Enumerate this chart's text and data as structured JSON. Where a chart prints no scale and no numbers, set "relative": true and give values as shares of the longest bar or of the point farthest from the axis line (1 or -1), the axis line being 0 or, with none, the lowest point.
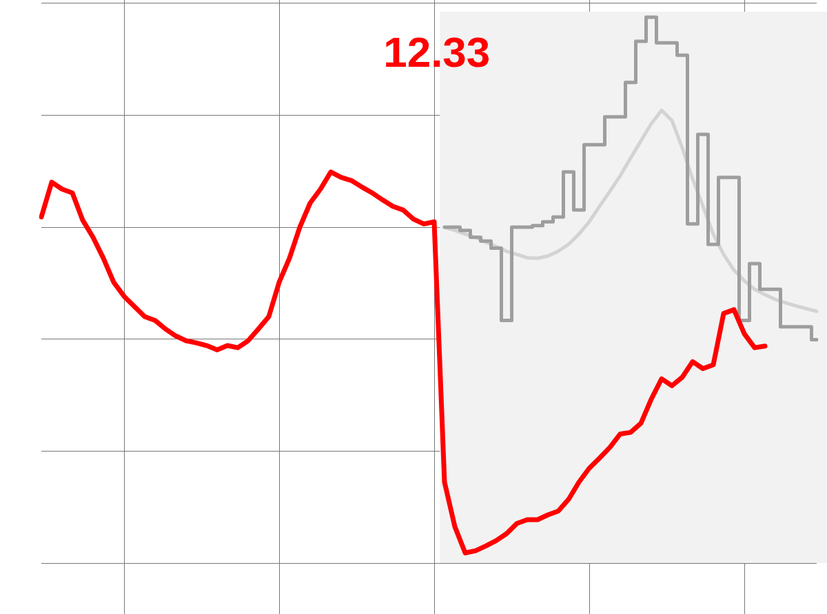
{
  "chart_data": {
    "type": "line",
    "relative": true,
    "grid": true,
    "legend": false,
    "marker": "none",
    "line_style": "solid",
    "annotations": [
      "12.33"
    ],
    "categories": [
      null,
      null,
      null,
      null,
      null,
      null,
      null,
      null,
      null,
      null,
      null,
      null,
      null,
      null,
      null,
      null,
      null,
      null,
      null,
      null,
      null,
      null,
      null,
      null,
      null,
      null,
      null,
      null,
      null,
      null,
      null,
      null,
      null,
      null,
      null,
      null,
      null,
      null,
      null,
      null,
      null,
      null,
      null,
      null,
      null,
      null,
      null,
      null,
      null,
      null,
      null,
      null,
      null,
      null,
      null,
      null,
      null,
      null,
      null,
      null,
      null,
      null,
      null,
      null,
      null,
      null,
      null,
      null,
      null,
      null,
      null,
      null,
      null,
      null,
      null,
      null
    ],
    "series": [
      {
        "color": "#d3d3d3",
        "values": [
          null,
          null,
          null,
          null,
          null,
          null,
          null,
          null,
          null,
          null,
          null,
          null,
          null,
          null,
          null,
          null,
          null,
          null,
          null,
          null,
          null,
          null,
          null,
          null,
          null,
          null,
          null,
          null,
          null,
          null,
          null,
          null,
          null,
          null,
          null,
          null,
          null,
          null,
          null,
          0.608,
          0.602,
          0.595,
          0.589,
          0.58,
          0.572,
          0.563,
          0.557,
          0.551,
          0.55,
          0.554,
          0.563,
          0.576,
          0.595,
          0.618,
          0.647,
          0.675,
          0.704,
          0.737,
          0.769,
          0.801,
          0.826,
          0.807,
          0.756,
          0.698,
          0.647,
          0.595,
          0.557,
          0.528,
          0.508,
          0.492,
          0.482,
          0.473,
          0.467,
          0.461,
          0.456,
          0.451
        ]
      },
      {
        "type": "step",
        "color": "#9e9e9e",
        "values": [
          null,
          null,
          null,
          null,
          null,
          null,
          null,
          null,
          null,
          null,
          null,
          null,
          null,
          null,
          null,
          null,
          null,
          null,
          null,
          null,
          null,
          null,
          null,
          null,
          null,
          null,
          null,
          null,
          null,
          null,
          null,
          null,
          null,
          null,
          null,
          null,
          null,
          null,
          null,
          0.608,
          0.608,
          0.602,
          0.589,
          0.582,
          0.569,
          0.434,
          0.608,
          0.608,
          0.611,
          0.618,
          0.627,
          0.711,
          0.64,
          0.762,
          0.762,
          0.814,
          0.814,
          0.878,
          0.955,
          1,
          0.952,
          0.952,
          0.929,
          0.614,
          0.781,
          0.576,
          0.701,
          0.701,
          0.434,
          0.54,
          0.492,
          0.492,
          0.422,
          0.422,
          0.422,
          0.398
        ]
      },
      {
        "color": "#ff0000",
        "values": [
          0.627,
          0.692,
          0.679,
          0.672,
          0.621,
          0.589,
          0.55,
          0.505,
          0.479,
          0.46,
          0.441,
          0.434,
          0.418,
          0.405,
          0.396,
          0.392,
          0.387,
          0.379,
          0.387,
          0.383,
          0.396,
          0.418,
          0.441,
          0.505,
          0.55,
          0.608,
          0.653,
          0.679,
          0.711,
          0.701,
          0.695,
          0.683,
          0.672,
          0.659,
          0.647,
          0.64,
          0.623,
          0.614,
          0.618,
          0.132,
          0.049,
          0,
          0.004,
          0.013,
          0.023,
          0.036,
          0.055,
          0.062,
          0.062,
          0.071,
          0.078,
          0.1,
          0.132,
          0.158,
          0.177,
          0.197,
          0.222,
          0.225,
          0.242,
          0.287,
          0.325,
          0.312,
          0.328,
          0.357,
          0.344,
          0.351,
          0.447,
          0.454,
          0.409,
          0.383,
          0.386,
          null,
          null,
          null,
          null,
          null
        ]
      }
    ]
  }
}
